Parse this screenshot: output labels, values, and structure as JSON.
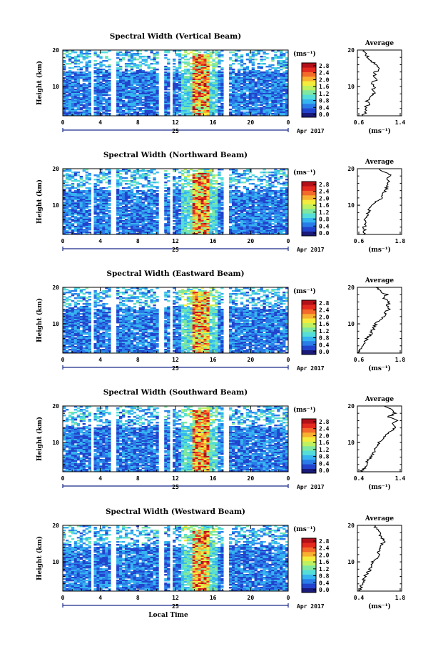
{
  "chart_data": [
    {
      "type": "heatmap",
      "title": "Spectral Width (Vertical Beam)",
      "ylabel": "Height (km)",
      "ylim": [
        2,
        20
      ],
      "yticks": [
        "20",
        "10"
      ],
      "xlim": [
        0,
        24
      ],
      "xticks": [
        "0",
        "4",
        "8",
        "12",
        "16",
        "20",
        "0"
      ],
      "date_day": "25",
      "date_month": "Apr 2017",
      "colorbar_unit": "(ms⁻¹)",
      "colorbar_ticks": [
        "2.8",
        "2.4",
        "2.0",
        "1.6",
        "1.2",
        "0.8",
        "0.4",
        "0.0"
      ],
      "data_gaps_hours": [
        [
          2.6,
          2.8
        ],
        [
          3.1,
          3.3
        ],
        [
          5.0,
          5.8
        ],
        [
          10.3,
          10.7
        ],
        [
          11.4,
          11.6
        ],
        [
          17.2,
          17.6
        ],
        [
          20.0,
          20.2
        ]
      ],
      "peak_region_hours": [
        13.8,
        15.6
      ],
      "average_profile": {
        "title": "Average",
        "xlabel": "(ms⁻¹)",
        "xticks": [
          "0.6",
          "1.4"
        ],
        "xlim": [
          0.6,
          1.4
        ],
        "yticks": [
          "20",
          "10"
        ],
        "ylim": [
          2,
          20
        ],
        "heights": [
          2,
          3,
          4,
          5,
          6,
          7,
          8,
          9,
          10,
          11,
          12,
          13,
          14,
          15,
          16,
          17,
          18,
          19,
          20
        ],
        "values": [
          0.7,
          0.75,
          0.72,
          0.8,
          0.78,
          0.85,
          0.9,
          0.88,
          0.92,
          0.86,
          0.95,
          0.9,
          0.93,
          1.0,
          0.95,
          0.85,
          0.8,
          0.75,
          0.72
        ]
      }
    },
    {
      "type": "heatmap",
      "title": "Spectral Width (Northward Beam)",
      "ylabel": "Height (km)",
      "ylim": [
        2,
        20
      ],
      "yticks": [
        "20",
        "10"
      ],
      "xlim": [
        0,
        24
      ],
      "xticks": [
        "0",
        "4",
        "8",
        "12",
        "16",
        "20",
        "0"
      ],
      "date_day": "25",
      "date_month": "Apr 2017",
      "colorbar_unit": "(ms⁻¹)",
      "colorbar_ticks": [
        "2.8",
        "2.4",
        "2.0",
        "1.6",
        "1.2",
        "0.8",
        "0.4",
        "0.0"
      ],
      "data_gaps_hours": [
        [
          2.6,
          2.8
        ],
        [
          3.1,
          3.3
        ],
        [
          5.0,
          5.8
        ],
        [
          10.3,
          10.7
        ],
        [
          11.4,
          11.6
        ],
        [
          17.2,
          17.6
        ],
        [
          20.0,
          20.2
        ]
      ],
      "peak_region_hours": [
        13.8,
        15.6
      ],
      "average_profile": {
        "title": "Average",
        "xlabel": "(ms⁻¹)",
        "xticks": [
          "0.6",
          "1.8"
        ],
        "xlim": [
          0.6,
          1.8
        ],
        "yticks": [
          "20",
          "10"
        ],
        "ylim": [
          2,
          20
        ],
        "heights": [
          2,
          3,
          4,
          5,
          6,
          7,
          8,
          9,
          10,
          11,
          12,
          13,
          14,
          15,
          16,
          17,
          18,
          19,
          20
        ],
        "values": [
          0.75,
          0.8,
          0.78,
          0.85,
          0.82,
          0.9,
          0.88,
          0.95,
          1.0,
          1.1,
          1.25,
          1.3,
          1.35,
          1.4,
          1.45,
          1.4,
          1.5,
          1.35,
          1.2
        ]
      }
    },
    {
      "type": "heatmap",
      "title": "Spectral Width (Eastward Beam)",
      "ylabel": "Height (km)",
      "ylim": [
        2,
        20
      ],
      "yticks": [
        "20",
        "10"
      ],
      "xlim": [
        0,
        24
      ],
      "xticks": [
        "0",
        "4",
        "8",
        "12",
        "16",
        "20",
        "0"
      ],
      "date_day": "25",
      "date_month": "Apr 2017",
      "colorbar_unit": "(ms⁻¹)",
      "colorbar_ticks": [
        "2.8",
        "2.4",
        "2.0",
        "1.6",
        "1.2",
        "0.8",
        "0.4",
        "0.0"
      ],
      "data_gaps_hours": [
        [
          2.6,
          2.8
        ],
        [
          3.1,
          3.3
        ],
        [
          5.0,
          5.8
        ],
        [
          10.3,
          10.7
        ],
        [
          11.4,
          11.6
        ],
        [
          17.2,
          17.6
        ],
        [
          20.0,
          20.2
        ]
      ],
      "peak_region_hours": [
        13.8,
        15.6
      ],
      "average_profile": {
        "title": "Average",
        "xlabel": "(ms⁻¹)",
        "xticks": [
          "0.6",
          "1.8"
        ],
        "xlim": [
          0.6,
          1.8
        ],
        "yticks": [
          "20",
          "10"
        ],
        "ylim": [
          2,
          20
        ],
        "heights": [
          2,
          3,
          4,
          5,
          6,
          7,
          8,
          9,
          10,
          11,
          12,
          13,
          14,
          15,
          16,
          17,
          18,
          19,
          20
        ],
        "values": [
          0.65,
          0.68,
          0.72,
          0.8,
          0.85,
          0.95,
          1.0,
          1.05,
          1.1,
          1.2,
          1.3,
          1.35,
          1.45,
          1.4,
          1.5,
          1.3,
          1.4,
          1.2,
          1.1
        ]
      }
    },
    {
      "type": "heatmap",
      "title": "Spectral Width (Southward Beam)",
      "ylabel": "Height (km)",
      "ylim": [
        2,
        20
      ],
      "yticks": [
        "20",
        "10"
      ],
      "xlim": [
        0,
        24
      ],
      "xticks": [
        "0",
        "4",
        "8",
        "12",
        "16",
        "20",
        "0"
      ],
      "date_day": "25",
      "date_month": "Apr 2017",
      "colorbar_unit": "(ms⁻¹)",
      "colorbar_ticks": [
        "2.8",
        "2.4",
        "2.0",
        "1.6",
        "1.2",
        "0.8",
        "0.4",
        "0.0"
      ],
      "data_gaps_hours": [
        [
          2.6,
          2.8
        ],
        [
          3.1,
          3.3
        ],
        [
          5.0,
          5.8
        ],
        [
          10.3,
          10.7
        ],
        [
          11.4,
          11.6
        ],
        [
          17.2,
          17.6
        ],
        [
          20.0,
          20.2
        ]
      ],
      "peak_region_hours": [
        13.8,
        15.6
      ],
      "average_profile": {
        "title": "Average",
        "xlabel": "(ms⁻¹)",
        "xticks": [
          "0.4",
          "1.4"
        ],
        "xlim": [
          0.4,
          1.4
        ],
        "yticks": [
          "20",
          "10"
        ],
        "ylim": [
          2,
          20
        ],
        "heights": [
          2,
          3,
          4,
          5,
          6,
          7,
          8,
          9,
          10,
          11,
          12,
          13,
          14,
          15,
          16,
          17,
          18,
          19,
          20
        ],
        "values": [
          0.5,
          0.55,
          0.6,
          0.62,
          0.7,
          0.75,
          0.8,
          0.85,
          0.9,
          0.95,
          1.05,
          1.15,
          1.25,
          1.2,
          1.3,
          1.1,
          1.25,
          1.15,
          1.0
        ]
      }
    },
    {
      "type": "heatmap",
      "title": "Spectral Width (Westward Beam)",
      "ylabel": "Height (km)",
      "ylim": [
        2,
        20
      ],
      "yticks": [
        "20",
        "10"
      ],
      "xlim": [
        0,
        24
      ],
      "xticks": [
        "0",
        "4",
        "8",
        "12",
        "16",
        "20",
        "0"
      ],
      "date_day": "25",
      "date_month": "Apr 2017",
      "xlabel": "Local Time",
      "colorbar_unit": "(ms⁻¹)",
      "colorbar_ticks": [
        "2.8",
        "2.4",
        "2.0",
        "1.6",
        "1.2",
        "0.8",
        "0.4",
        "0.0"
      ],
      "data_gaps_hours": [
        [
          2.6,
          2.8
        ],
        [
          3.1,
          3.3
        ],
        [
          5.0,
          5.8
        ],
        [
          10.3,
          10.7
        ],
        [
          11.4,
          11.6
        ],
        [
          17.2,
          17.6
        ],
        [
          20.0,
          20.2
        ]
      ],
      "peak_region_hours": [
        13.8,
        15.6
      ],
      "average_profile": {
        "title": "Average",
        "xlabel": "(ms⁻¹)",
        "xticks": [
          "0.4",
          "1.8"
        ],
        "xlim": [
          0.4,
          1.8
        ],
        "yticks": [
          "20",
          "10"
        ],
        "ylim": [
          2,
          20
        ],
        "heights": [
          2,
          3,
          4,
          5,
          6,
          7,
          8,
          9,
          10,
          11,
          12,
          13,
          14,
          15,
          16,
          17,
          18,
          19,
          20
        ],
        "values": [
          0.5,
          0.52,
          0.55,
          0.6,
          0.65,
          0.72,
          0.8,
          0.85,
          0.9,
          1.0,
          1.05,
          1.1,
          1.15,
          1.2,
          1.25,
          1.15,
          1.1,
          1.0,
          0.95
        ]
      }
    }
  ],
  "colormap": [
    "#1a1a7a",
    "#2244cc",
    "#2a7de8",
    "#36b4f0",
    "#55ddd8",
    "#7fe7a0",
    "#bff060",
    "#f4ec3c",
    "#f8b030",
    "#f36a2a",
    "#e42a1e",
    "#b3101a"
  ]
}
